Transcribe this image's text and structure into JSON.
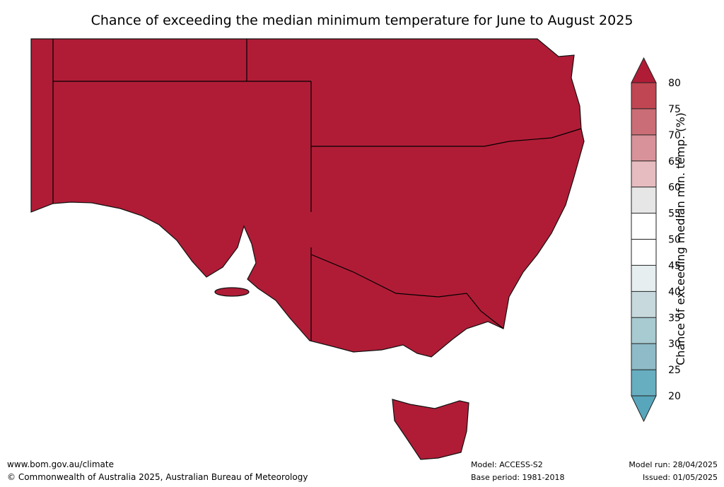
{
  "title": "Chance of exceeding the median minimum temperature for June to August 2025",
  "colorbar": {
    "label": "Chance of exceeding median min. temp. (%)",
    "ylim": [
      20,
      80
    ],
    "ticks": [
      20,
      25,
      30,
      35,
      40,
      45,
      50,
      55,
      60,
      65,
      70,
      75,
      80
    ],
    "bin_colors": [
      "#67aec0",
      "#8ebbc7",
      "#a8cad1",
      "#c7d9dd",
      "#e6eef0",
      "#ffffff",
      "#ffffff",
      "#e6e6e6",
      "#e6bcc0",
      "#d8929a",
      "#cb6d76",
      "#bf4652"
    ],
    "under_color": "#58a6bb",
    "over_color": "#b01c36"
  },
  "map": {
    "fill_color": "#b01c36"
  },
  "footer": {
    "website": "www.bom.gov.au/climate",
    "copyright": "© Commonwealth of Australia 2025, Australian Bureau of Meteorology",
    "model": "Model: ACCESS-S2",
    "base_period": "Base period: 1981-2018",
    "model_run": "Model run: 28/04/2025",
    "issued": "Issued: 01/05/2025"
  }
}
